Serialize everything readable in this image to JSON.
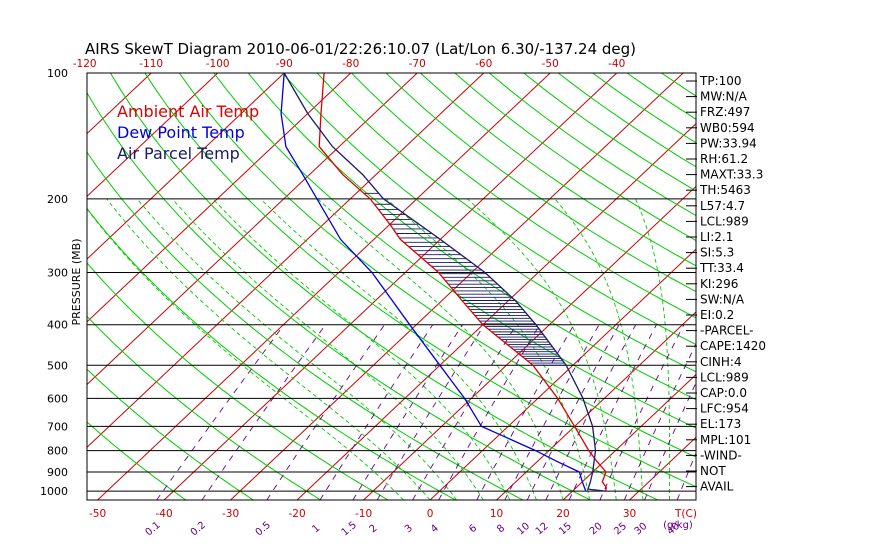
{
  "title": "AIRS SkewT Diagram 2010-06-01/22:26:10.07 (Lat/Lon 6.30/-137.24 deg)",
  "chart_data": {
    "type": "line",
    "title": "AIRS SkewT Diagram 2010-06-01/22:26:10.07 (Lat/Lon 6.30/-137.24 deg)",
    "ylabel": "PRESSURE (MB)",
    "y_scale": "log",
    "y_inverted": true,
    "ylim": [
      1050,
      100
    ],
    "pressure_levels": [
      100,
      200,
      300,
      400,
      500,
      600,
      700,
      800,
      900,
      1000
    ],
    "pressure_tick_labels": [
      "100",
      "200",
      "300",
      "400",
      "500",
      "600",
      "700",
      "800",
      "900",
      "1000"
    ],
    "top_temperature_ticks": [
      -120,
      -110,
      -100,
      -90,
      -80,
      -70,
      -60,
      -50,
      -40
    ],
    "top_temperature_labels": [
      "-120",
      "-110",
      "-100",
      "-90",
      "-80",
      "-70",
      "-60",
      "-50",
      "-40"
    ],
    "bottom_temperature_ticks": [
      -50,
      -40,
      -30,
      -20,
      -10,
      0,
      10,
      20,
      30
    ],
    "bottom_temperature_labels": [
      "-50",
      "-40",
      "-30",
      "-20",
      "-10",
      "0",
      "10",
      "20",
      "30"
    ],
    "bottom_temperature_unit": "T(C)",
    "mixing_ratio_labels": [
      "0.1",
      "0.2",
      "0.5",
      "1",
      "1.5",
      "2",
      "3",
      "4",
      "6",
      "8",
      "10",
      "12",
      "15",
      "20",
      "25",
      "30",
      "40"
    ],
    "mixing_ratio_unit": "(g/kg)",
    "skew": "temperature isotherms skewed to the right",
    "colors": {
      "ambient": "#dd0000",
      "dewpoint": "#0000dd",
      "parcel": "#1a1a66",
      "isotherm": "#cc0000",
      "dry_adiabat": "#00cc00",
      "moist_adiabat": "#00cc00",
      "mixing_ratio": "#66008a",
      "cape_hatch": "#1a1a66"
    },
    "series": [
      {
        "name": "Ambient Air Temp",
        "points": [
          [
            1000,
            25
          ],
          [
            980,
            24.5
          ],
          [
            950,
            23
          ],
          [
            900,
            22
          ],
          [
            850,
            19
          ],
          [
            800,
            16
          ],
          [
            700,
            10
          ],
          [
            600,
            3
          ],
          [
            500,
            -6
          ],
          [
            400,
            -20
          ],
          [
            350,
            -27
          ],
          [
            300,
            -35
          ],
          [
            250,
            -46
          ],
          [
            230,
            -50
          ],
          [
            200,
            -57
          ],
          [
            175,
            -65
          ],
          [
            150,
            -73
          ],
          [
            125,
            -78
          ],
          [
            100,
            -84
          ]
        ]
      },
      {
        "name": "Dew Point Temp",
        "points": [
          [
            1000,
            22
          ],
          [
            950,
            20
          ],
          [
            900,
            18
          ],
          [
            850,
            13
          ],
          [
            800,
            8
          ],
          [
            700,
            -4
          ],
          [
            600,
            -11
          ],
          [
            500,
            -20
          ],
          [
            400,
            -31
          ],
          [
            300,
            -45
          ],
          [
            250,
            -55
          ],
          [
            200,
            -65
          ],
          [
            175,
            -71
          ],
          [
            150,
            -78
          ],
          [
            125,
            -84
          ],
          [
            100,
            -90
          ]
        ]
      },
      {
        "name": "Air Parcel Temp",
        "points": [
          [
            1000,
            25
          ],
          [
            989,
            22
          ],
          [
            954,
            21.3
          ],
          [
            900,
            20
          ],
          [
            800,
            17
          ],
          [
            700,
            12.7
          ],
          [
            600,
            6.8
          ],
          [
            500,
            -1
          ],
          [
            400,
            -12
          ],
          [
            350,
            -19
          ],
          [
            300,
            -28
          ],
          [
            250,
            -40
          ],
          [
            200,
            -55
          ],
          [
            175,
            -62
          ],
          [
            150,
            -71
          ],
          [
            125,
            -80
          ],
          [
            100,
            -90
          ]
        ]
      }
    ],
    "indices": [
      "TP:100",
      "MW:N/A",
      "FRZ:497",
      "WB0:594",
      "PW:33.94",
      "RH:61.2",
      "MAXT:33.3",
      "TH:5463",
      "L57:4.7",
      "LCL:989",
      "LI:2.1",
      "SI:5.3",
      "TT:33.4",
      "KI:296",
      "SW:N/A",
      "EI:0.2",
      "-PARCEL-",
      "CAPE:1420",
      "CINH:4",
      "LCL:989",
      "CAP:0.0",
      "LFC:954",
      "EL:173",
      "MPL:101",
      "-WIND-",
      "NOT",
      "AVAIL"
    ]
  }
}
